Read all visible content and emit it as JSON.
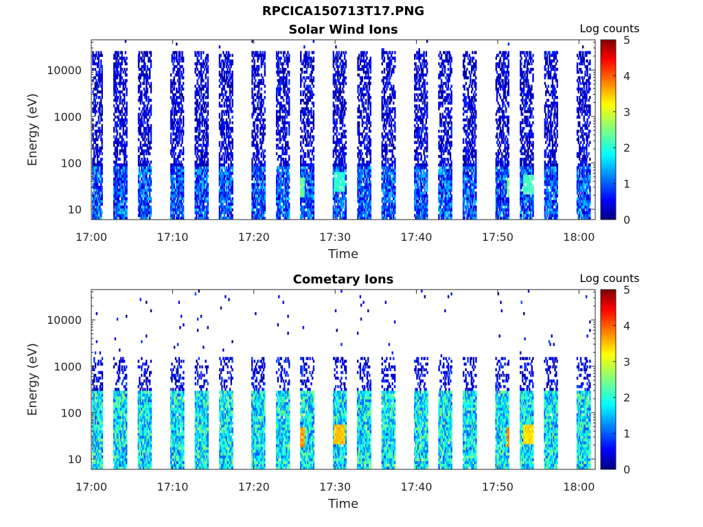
{
  "figure": {
    "filename_title": "RPCICA150713T17.PNG"
  },
  "chart_data": [
    {
      "type": "heatmap",
      "title": "Solar Wind Ions",
      "xlabel": "Time",
      "ylabel": "Energy (eV)",
      "x_ticks": [
        "17:00",
        "17:10",
        "17:20",
        "17:30",
        "17:40",
        "17:50",
        "18:00"
      ],
      "x_range": [
        "17:00",
        "18:02"
      ],
      "y_scale": "log",
      "y_ticks": [
        "10",
        "100",
        "1000",
        "10000"
      ],
      "y_range": [
        6,
        45000
      ],
      "colorbar": {
        "label": "Log counts",
        "ticks": [
          "0",
          "1",
          "2",
          "3",
          "4",
          "5"
        ],
        "range": [
          0,
          5
        ],
        "colormap": "jet"
      },
      "description": "Periodic vertical sweeps every ~3.3 min, sparse counts (log 0-1) up to ~20 keV, peaks ~2-3 near 30-50 eV",
      "burst_times": [
        "17:00",
        "17:03",
        "17:06",
        "17:10",
        "17:13",
        "17:16",
        "17:20",
        "17:23",
        "17:26",
        "17:30",
        "17:33",
        "17:36",
        "17:40",
        "17:43",
        "17:46",
        "17:50",
        "17:53",
        "17:56",
        "18:00"
      ],
      "hot_spots": [
        {
          "time": "17:25.5",
          "energy_eV": 30,
          "log_counts": 2.5
        },
        {
          "time": "17:30.5",
          "energy_eV": 40,
          "log_counts": 2.3
        },
        {
          "time": "17:51.8",
          "energy_eV": 30,
          "log_counts": 2.6
        },
        {
          "time": "17:53.8",
          "energy_eV": 35,
          "log_counts": 2.4
        }
      ]
    },
    {
      "type": "heatmap",
      "title": "Cometary Ions",
      "xlabel": "Time",
      "ylabel": "Energy (eV)",
      "x_ticks": [
        "17:00",
        "17:10",
        "17:20",
        "17:30",
        "17:40",
        "17:50",
        "18:00"
      ],
      "x_range": [
        "17:00",
        "18:02"
      ],
      "y_scale": "log",
      "y_ticks": [
        "10",
        "100",
        "1000",
        "10000"
      ],
      "y_range": [
        6,
        45000
      ],
      "colorbar": {
        "label": "Log counts",
        "ticks": [
          "0",
          "1",
          "2",
          "3",
          "4",
          "5"
        ],
        "range": [
          0,
          5
        ],
        "colormap": "jet"
      },
      "description": "Periodic sweeps every ~3.3 min, high counts (log 1.5-3) between 10 and 300 eV, sparse up to ~1 keV",
      "burst_times": [
        "17:00",
        "17:03",
        "17:06",
        "17:10",
        "17:13",
        "17:16",
        "17:20",
        "17:23",
        "17:26",
        "17:30",
        "17:33",
        "17:36",
        "17:40",
        "17:43",
        "17:46",
        "17:50",
        "17:53",
        "17:56",
        "18:00"
      ],
      "hot_spots": [
        {
          "time": "17:25.5",
          "energy_eV": 30,
          "log_counts": 3.8
        },
        {
          "time": "17:30.5",
          "energy_eV": 35,
          "log_counts": 3.6
        },
        {
          "time": "17:51.8",
          "energy_eV": 30,
          "log_counts": 3.9
        },
        {
          "time": "17:53.8",
          "energy_eV": 35,
          "log_counts": 3.5
        }
      ]
    }
  ]
}
